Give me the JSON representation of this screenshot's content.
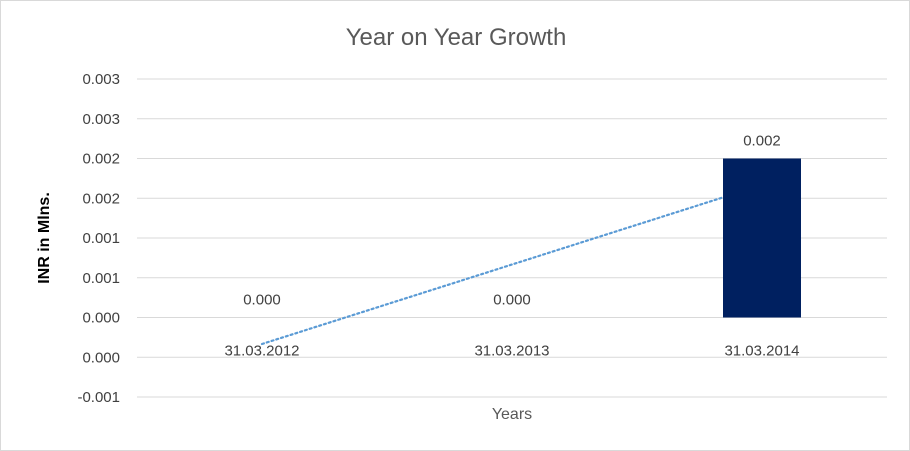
{
  "chart_data": {
    "type": "bar",
    "title": "Year on Year Growth",
    "xlabel": "Years",
    "ylabel": "INR in Mlns.",
    "categories": [
      "31.03.2012",
      "31.03.2013",
      "31.03.2014"
    ],
    "values": [
      0.0,
      0.0,
      0.002
    ],
    "data_labels": [
      "0.000",
      "0.000",
      "0.002"
    ],
    "ylim": [
      -0.001,
      0.003
    ],
    "y_ticks": [
      -0.001,
      -0.0005,
      0.0,
      0.0005,
      0.001,
      0.0015,
      0.002,
      0.0025,
      0.003
    ],
    "y_tick_labels": [
      "-0.001",
      "0.000",
      "0.000",
      "0.001",
      "0.001",
      "0.002",
      "0.002",
      "0.003",
      "0.003"
    ],
    "trendline": {
      "type": "linear",
      "style": "dotted",
      "color": "#5b9bd5"
    },
    "bar_color": "#002060",
    "gridlines": true,
    "legend": "none"
  }
}
